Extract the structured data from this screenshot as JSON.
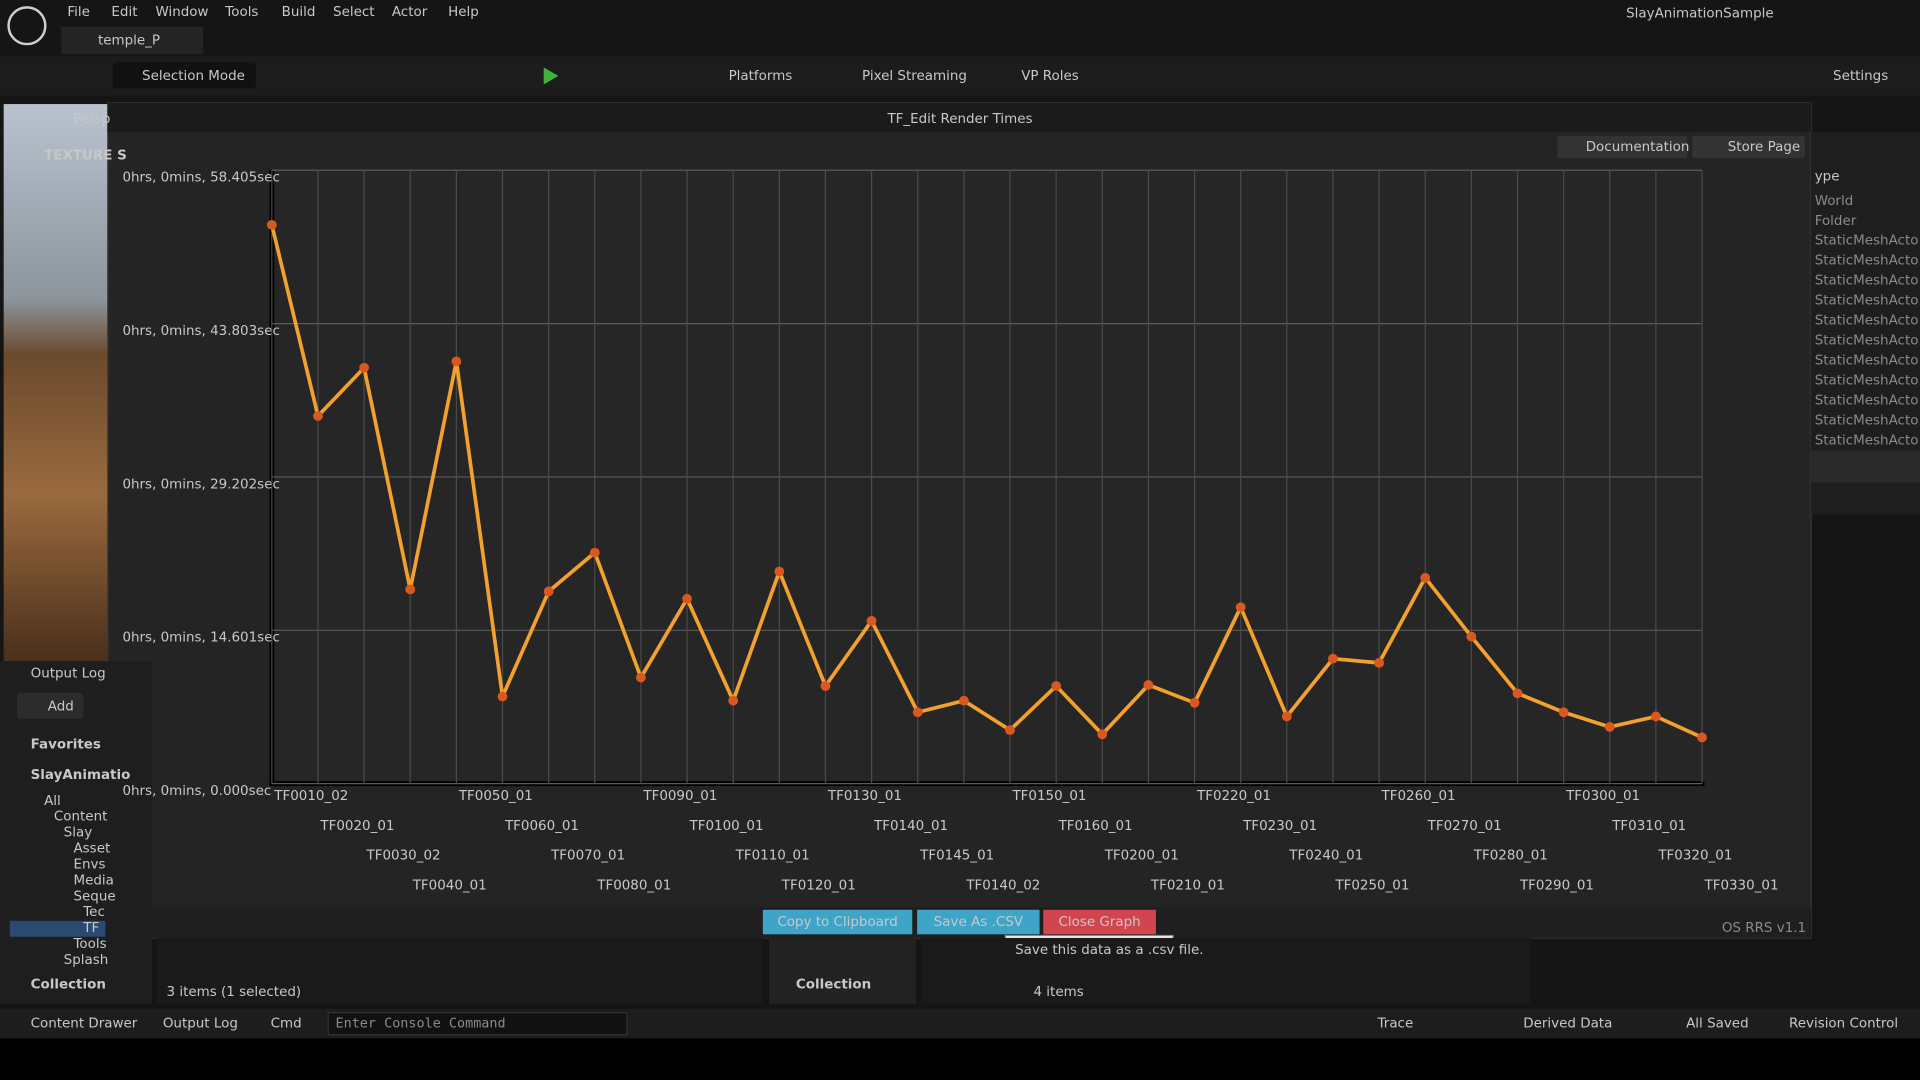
{
  "app": {
    "menu": [
      "File",
      "Edit",
      "Window",
      "Tools",
      "Build",
      "Select",
      "Actor",
      "Help"
    ],
    "project": "SlayAnimationSample",
    "tab": "temple_P",
    "toolbar": {
      "mode": "Selection Mode",
      "platforms": "Platforms",
      "streaming": "Pixel Streaming",
      "roles": "VP Roles",
      "settings": "Settings"
    },
    "viewport": {
      "view": "Persp",
      "overlay": "TEXTURE S"
    },
    "dialog": {
      "title": "TF_Edit Render Times",
      "documentation": "Documentation",
      "store": "Store Page",
      "buttons": {
        "copy": "Copy to Clipboard",
        "csv": "Save As .CSV",
        "close": "Close Graph"
      },
      "tooltip": "Save this data as a .csv file.",
      "version": "OS RRS v1.1"
    },
    "outliner": {
      "header": "ype",
      "rows": [
        "World",
        "Folder",
        "StaticMeshActo",
        "StaticMeshActo",
        "StaticMeshActo",
        "StaticMeshActo",
        "StaticMeshActo",
        "StaticMeshActo",
        "StaticMeshActo",
        "StaticMeshActo",
        "StaticMeshActo",
        "StaticMeshActo",
        "StaticMeshActo"
      ]
    },
    "content": {
      "output_log": "Output Log",
      "add": "Add",
      "favorites": "Favorites",
      "root": "SlayAnimatio",
      "tree": [
        "All",
        "Content",
        "Slay",
        "Asset",
        "Envs",
        "Media",
        "Seque",
        "Tec",
        "TF",
        "Tools",
        "Splash"
      ],
      "collection": "Collection",
      "items_left": "3 items (1 selected)",
      "collection_mid": "Collection",
      "items_mid": "4 items"
    },
    "status": {
      "drawer": "Content Drawer",
      "log": "Output Log",
      "cmd": "Cmd",
      "console": "Enter Console Command",
      "trace": "Trace",
      "derived": "Derived Data",
      "saved": "All Saved",
      "revision": "Revision Control"
    }
  },
  "chart_data": {
    "type": "line",
    "categories": [
      "TF0010_02",
      "TF0020_01",
      "TF0030_02",
      "TF0040_01",
      "TF0050_01",
      "TF0060_01",
      "TF0070_01",
      "TF0080_01",
      "TF0090_01",
      "TF0100_01",
      "TF0110_01",
      "TF0120_01",
      "TF0130_01",
      "TF0140_01",
      "TF0145_01",
      "TF0140_02",
      "TF0150_01",
      "TF0160_01",
      "TF0200_01",
      "TF0210_01",
      "TF0220_01",
      "TF0230_01",
      "TF0240_01",
      "TF0250_01",
      "TF0260_01",
      "TF0270_01",
      "TF0280_01",
      "TF0290_01",
      "TF0300_01",
      "TF0310_01",
      "TF0320_01",
      "TF0330_01"
    ],
    "values": [
      53.2,
      35.0,
      39.6,
      18.5,
      40.2,
      8.3,
      18.3,
      22.0,
      10.1,
      17.6,
      7.9,
      20.2,
      9.3,
      15.5,
      6.8,
      7.9,
      5.1,
      9.3,
      4.7,
      9.4,
      7.7,
      16.8,
      6.4,
      11.9,
      11.5,
      19.6,
      14.0,
      8.6,
      6.8,
      5.4,
      6.4,
      4.4
    ],
    "color": "#f2a12e",
    "marker_color": "#d9581f",
    "ylim": [
      0,
      58.405
    ],
    "yticks": [
      {
        "value": 0,
        "label": "0hrs, 0mins, 0.000sec"
      },
      {
        "value": 14.601,
        "label": "0hrs, 0mins, 14.601sec"
      },
      {
        "value": 29.202,
        "label": "0hrs, 0mins, 29.202sec"
      },
      {
        "value": 43.803,
        "label": "0hrs, 0mins, 43.803sec"
      },
      {
        "value": 58.405,
        "label": "0hrs, 0mins, 58.405sec"
      }
    ],
    "grid": true
  }
}
